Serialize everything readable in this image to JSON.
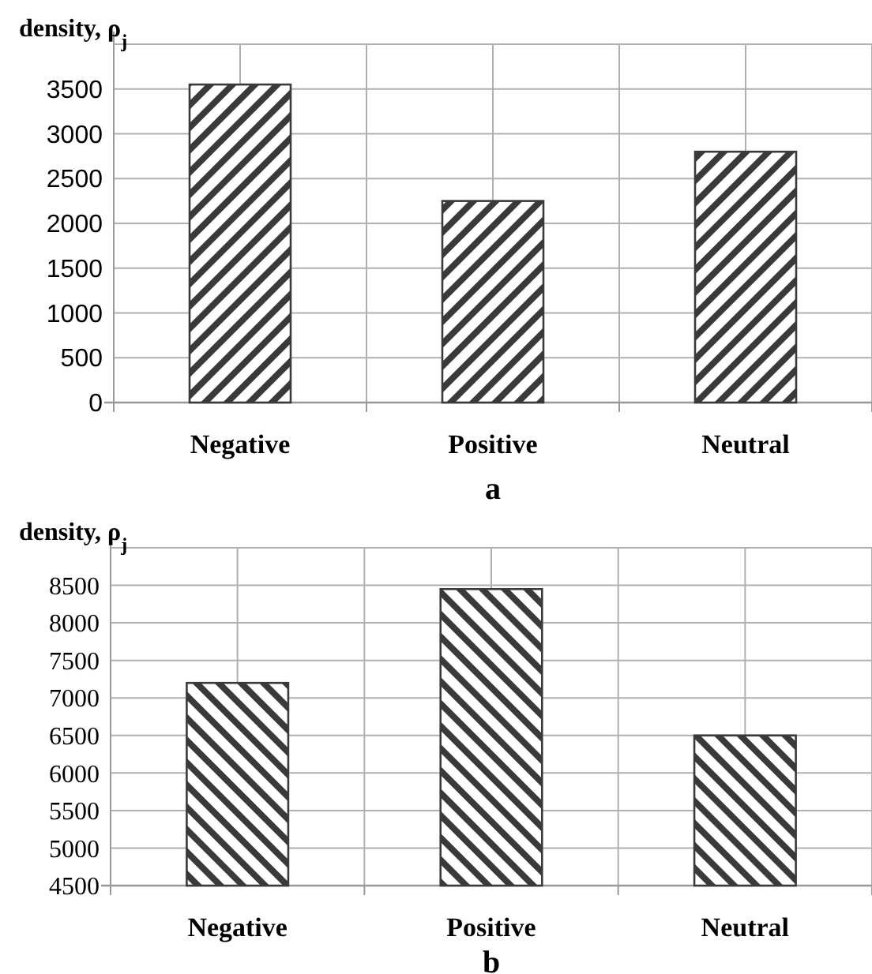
{
  "chart_data": [
    {
      "type": "bar",
      "xlabel": "a",
      "ylabel": "density, ρ$_{j}$",
      "categories": [
        "Negative",
        "Positive",
        "Neutral"
      ],
      "values": [
        3550,
        2250,
        2800
      ],
      "color": "#3a3a3a",
      "ylim": [
        0,
        4000
      ],
      "yticks": [
        0,
        500,
        1000,
        1500,
        2000,
        2500,
        3000,
        3500,
        {
          "value": 4000,
          "label": null
        }
      ],
      "grid": true
    },
    {
      "type": "bar",
      "xlabel": "b",
      "ylabel": "density, ρ$_{j}$",
      "categories": [
        "Negative",
        "Positive",
        "Neutral"
      ],
      "values": [
        7200,
        8450,
        6500
      ],
      "color": "#3a3a3a",
      "ylim": [
        4500,
        9000
      ],
      "yticks": [
        4500,
        5000,
        5500,
        6000,
        6500,
        7000,
        7500,
        8000,
        8500,
        {
          "value": 9000,
          "label": null
        }
      ],
      "grid": true
    }
  ]
}
